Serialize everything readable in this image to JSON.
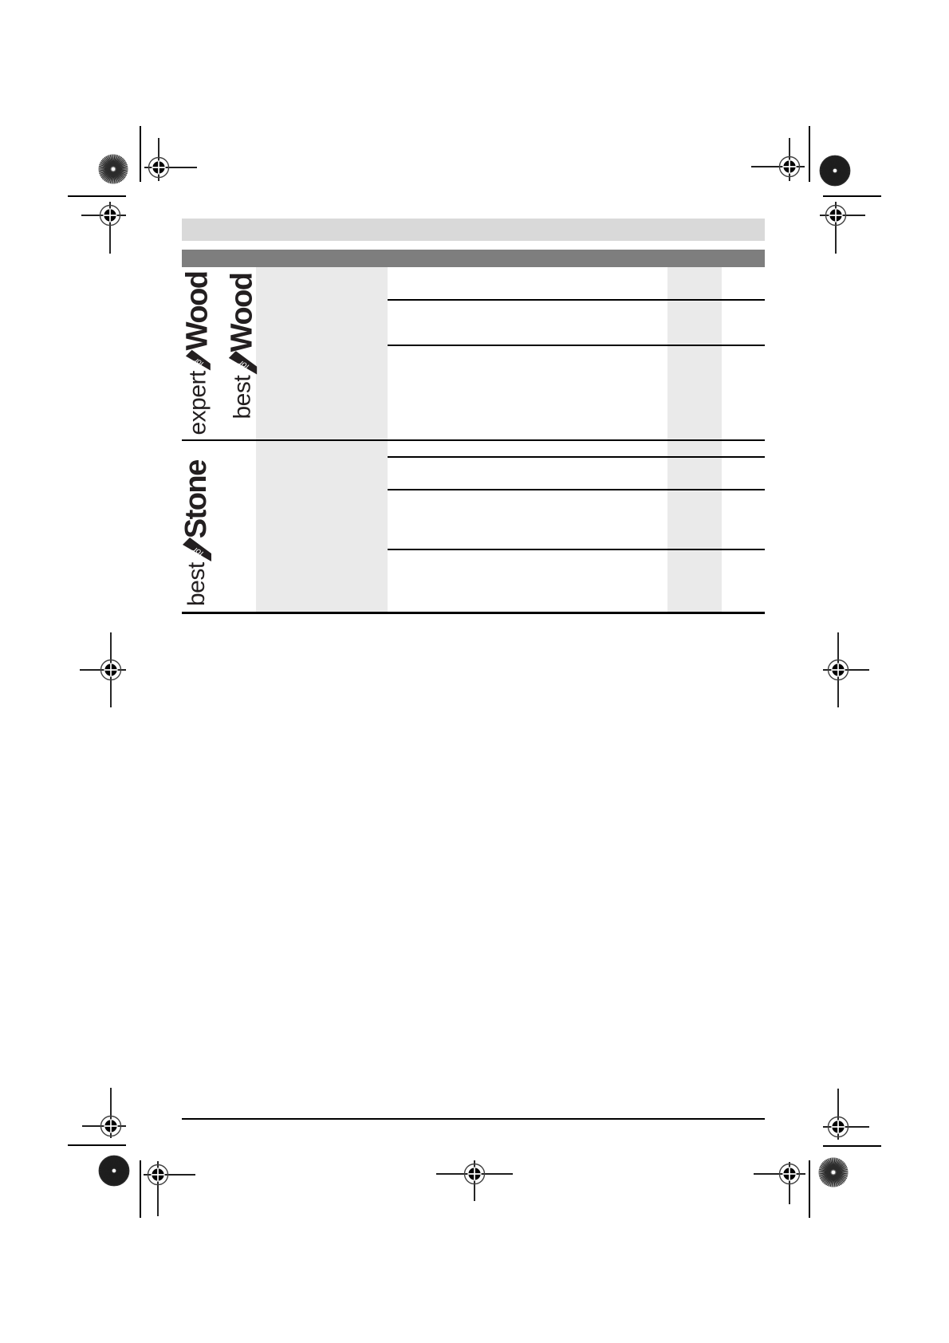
{
  "document": {
    "kind": "print-proof page with crop and registration marks",
    "background_color": "#ffffff"
  },
  "header": {
    "light_band_color": "#d9d9d9",
    "dark_band_color": "#7e7e7e"
  },
  "table": {
    "column_shade_color": "#eaeaea",
    "rule_color": "#000000",
    "sections": [
      {
        "id": "wood-section",
        "logo_indexes": [
          0,
          1
        ],
        "row_count": 3
      },
      {
        "id": "stone-section",
        "logo_indexes": [
          2
        ],
        "row_count": 4
      }
    ]
  },
  "logos": [
    {
      "prefix": "expert",
      "ribbon_word": "for",
      "material": "Wood"
    },
    {
      "prefix": "best",
      "ribbon_word": "for",
      "material": "Wood"
    },
    {
      "prefix": "best",
      "ribbon_word": "for",
      "material": "Stone"
    }
  ],
  "logo_style": {
    "text_color": "#231f20",
    "ribbon_fill_color": "#231f20",
    "ribbon_text_color": "#ffffff"
  },
  "printer_marks": {
    "registration_mark_count": 11,
    "star_target_count": 4,
    "mark_color": "#000000"
  }
}
